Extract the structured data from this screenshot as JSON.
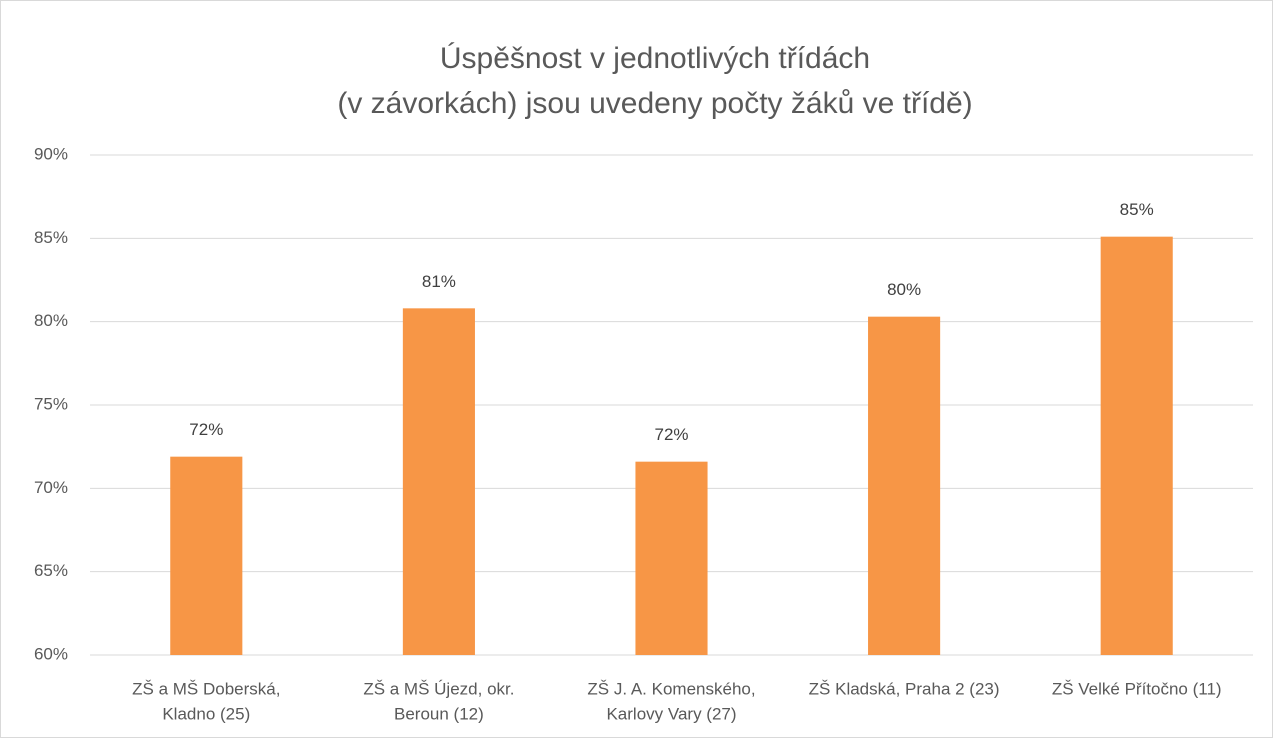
{
  "chart_data": {
    "type": "bar",
    "title": [
      "Úspěšnost v jednotlivých třídách",
      "(v závorkách) jsou uvedeny počty žáků ve třídě)"
    ],
    "categories": [
      [
        "ZŠ a MŠ Doberská,",
        "Kladno (25)"
      ],
      [
        "ZŠ a MŠ Újezd, okr.",
        "Beroun (12)"
      ],
      [
        "ZŠ J. A. Komenského,",
        "Karlovy Vary (27)"
      ],
      [
        "ZŠ Kladská, Praha 2 (23)"
      ],
      [
        "ZŠ Velké Přítočno (11)"
      ]
    ],
    "values": [
      71.9,
      80.8,
      71.6,
      80.3,
      85.1
    ],
    "value_labels": [
      "72%",
      "81%",
      "72%",
      "80%",
      "85%"
    ],
    "color": "#f79646",
    "ylim": [
      60,
      90
    ],
    "yticks": [
      {
        "value": 60,
        "label": "60%"
      },
      {
        "value": 65,
        "label": "65%"
      },
      {
        "value": 70,
        "label": "70%"
      },
      {
        "value": 75,
        "label": "75%"
      },
      {
        "value": 80,
        "label": "80%"
      },
      {
        "value": 85,
        "label": "85%"
      },
      {
        "value": 90,
        "label": "90%"
      }
    ],
    "grid": true
  }
}
